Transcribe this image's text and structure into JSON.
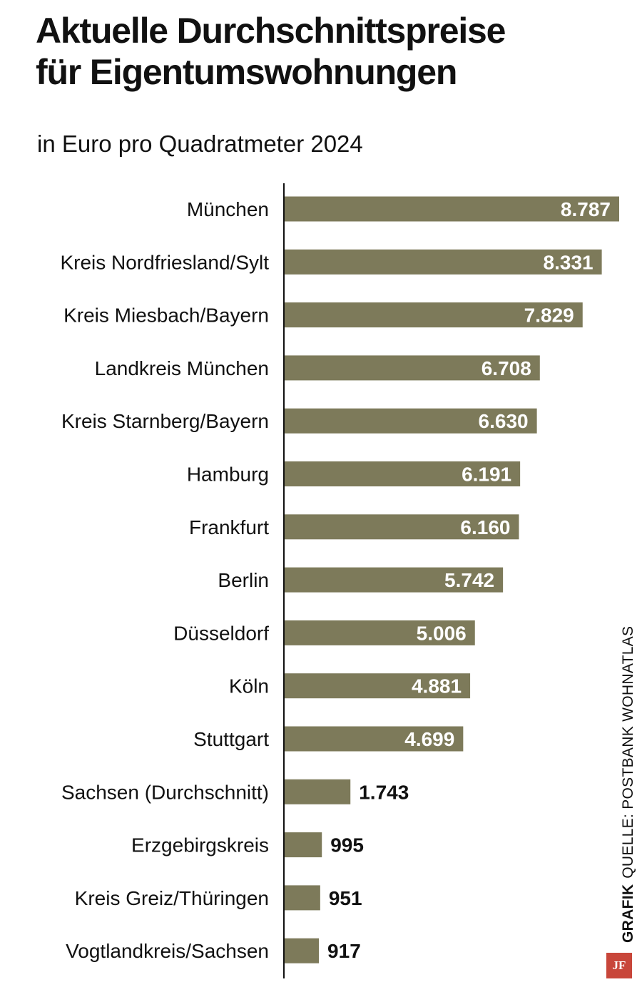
{
  "header": {
    "title_line1": "Aktuelle Durchschnittspreise",
    "title_line2": "für Eigentumswohnungen",
    "subtitle": "in Euro pro Quadratmeter 2024"
  },
  "footer": {
    "credit": "GRAFIK",
    "source": "QUELLE: POSTBANK WOHNATLAS",
    "logo_text": "JF"
  },
  "colors": {
    "bar": "#7d7a5a",
    "label_inside": "#ffffff",
    "label_outside": "#111111",
    "logo": "#c8463a"
  },
  "chart_data": {
    "type": "bar",
    "orientation": "horizontal",
    "title": "Aktuelle Durchschnittspreise für Eigentumswohnungen",
    "subtitle": "in Euro pro Quadratmeter 2024",
    "xlabel": "",
    "ylabel": "",
    "xlim": [
      0,
      8787
    ],
    "grid": false,
    "categories": [
      "München",
      "Kreis Nordfriesland/Sylt",
      "Kreis Miesbach/Bayern",
      "Landkreis München",
      "Kreis Starnberg/Bayern",
      "Hamburg",
      "Frankfurt",
      "Berlin",
      "Düsseldorf",
      "Köln",
      "Stuttgart",
      "Sachsen (Durchschnitt)",
      "Erzgebirgskreis",
      "Kreis Greiz/Thüringen",
      "Vogtlandkreis/Sachsen"
    ],
    "values": [
      8787,
      8331,
      7829,
      6708,
      6630,
      6191,
      6160,
      5742,
      5006,
      4881,
      4699,
      1743,
      995,
      951,
      917
    ],
    "value_labels": [
      "8.787",
      "8.331",
      "7.829",
      "6.708",
      "6.630",
      "6.191",
      "6.160",
      "5.742",
      "5.006",
      "4.881",
      "4.699",
      "1.743",
      "995",
      "951",
      "917"
    ]
  }
}
